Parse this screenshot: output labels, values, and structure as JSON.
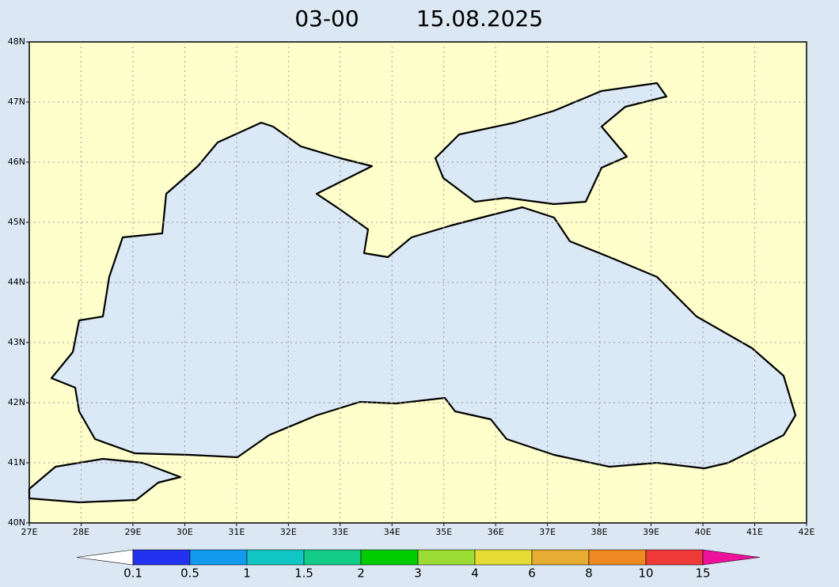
{
  "title": {
    "time": "03-00",
    "date": "15.08.2025"
  },
  "lon_labels": [
    "27E",
    "28E",
    "29E",
    "30E",
    "31E",
    "32E",
    "33E",
    "34E",
    "35E",
    "36E",
    "37E",
    "38E",
    "39E",
    "40E",
    "41E",
    "42E"
  ],
  "lat_labels": [
    "40N",
    "41N",
    "42N",
    "43N",
    "44N",
    "45N",
    "46N",
    "47N",
    "48N"
  ],
  "land_color": "#ffffcc",
  "sea_color": "#dbe8f5",
  "legend": {
    "labels": [
      "0.1",
      "0.5",
      "1",
      "1.5",
      "2",
      "3",
      "4",
      "6",
      "8",
      "10",
      "15"
    ],
    "colors": [
      "#ffffff",
      "#2232ee",
      "#129bee",
      "#12c6c6",
      "#12cc88",
      "#00cc00",
      "#9bdd33",
      "#e6dc33",
      "#e6ac33",
      "#ef8a22",
      "#ef3a3a",
      "#ee1199"
    ]
  }
}
